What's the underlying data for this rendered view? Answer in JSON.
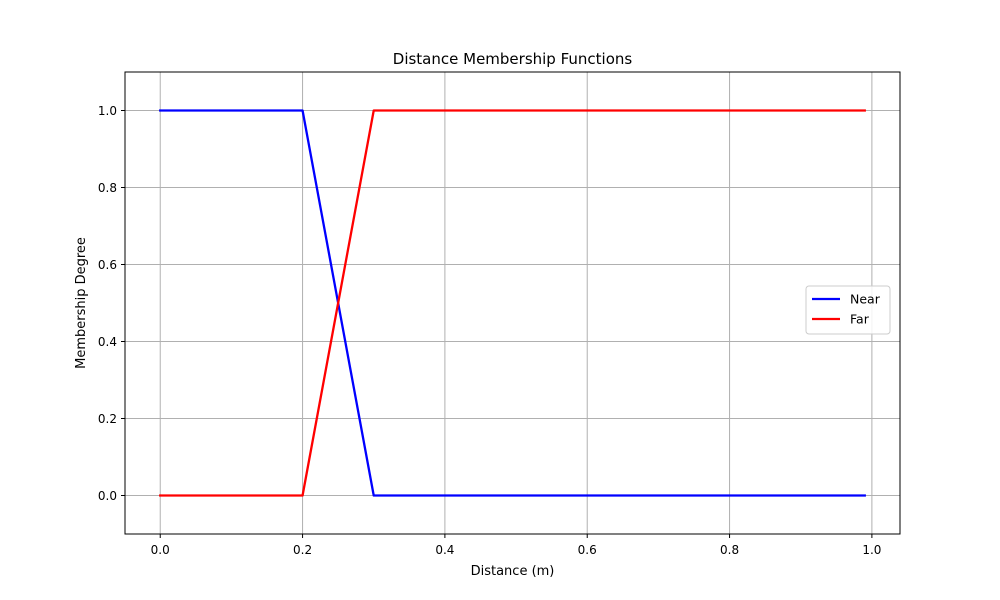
{
  "chart_data": {
    "type": "line",
    "title": "Distance Membership Functions",
    "xlabel": "Distance (m)",
    "ylabel": "Membership Degree",
    "xlim": [
      -0.0495,
      1.0395
    ],
    "ylim": [
      -0.1,
      1.1
    ],
    "xticks": [
      0.0,
      0.2,
      0.4,
      0.6,
      0.8,
      1.0
    ],
    "xtick_labels": [
      "0.0",
      "0.2",
      "0.4",
      "0.6",
      "0.8",
      "1.0"
    ],
    "yticks": [
      0.0,
      0.2,
      0.4,
      0.6,
      0.8,
      1.0
    ],
    "ytick_labels": [
      "0.0",
      "0.2",
      "0.4",
      "0.6",
      "0.8",
      "1.0"
    ],
    "grid": true,
    "legend_position": "center-right",
    "series": [
      {
        "name": "Near",
        "color": "#0000ff",
        "x": [
          0.0,
          0.2,
          0.3,
          0.99
        ],
        "y": [
          1.0,
          1.0,
          0.0,
          0.0
        ]
      },
      {
        "name": "Far",
        "color": "#ff0000",
        "x": [
          0.0,
          0.2,
          0.3,
          0.99
        ],
        "y": [
          0.0,
          0.0,
          1.0,
          1.0
        ]
      }
    ]
  }
}
